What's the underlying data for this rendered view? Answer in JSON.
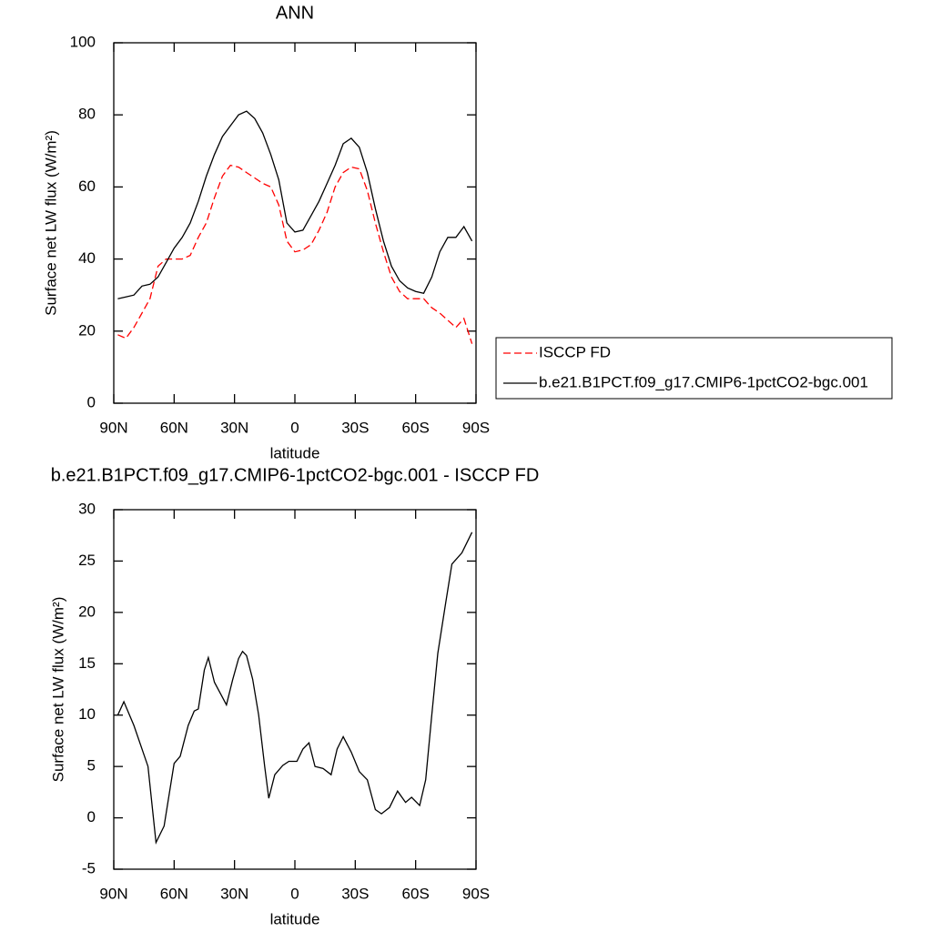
{
  "chart_data": [
    {
      "type": "line",
      "title": "ANN",
      "xlabel": "latitude",
      "ylabel": "Surface net LW flux (W/m²)",
      "x": [
        88,
        84,
        80,
        76,
        72,
        68,
        64,
        60,
        56,
        52,
        48,
        44,
        40,
        36,
        32,
        28,
        24,
        20,
        16,
        12,
        8,
        4,
        0,
        -4,
        -8,
        -12,
        -16,
        -20,
        -24,
        -28,
        -32,
        -36,
        -40,
        -44,
        -48,
        -52,
        -56,
        -60,
        -64,
        -68,
        -72,
        -76,
        -80,
        -84,
        -88
      ],
      "series": [
        {
          "name": "ISCCP FD",
          "color": "#ff0000",
          "line_style": "dashed",
          "values": [
            19,
            18,
            21,
            25,
            29,
            38,
            40,
            40,
            40,
            41,
            46,
            50,
            57,
            63,
            66,
            65.5,
            64,
            62.5,
            61,
            60,
            55,
            45,
            42,
            42.5,
            44,
            48,
            53,
            60,
            64,
            65.5,
            65,
            59,
            50,
            42,
            35,
            31,
            29,
            29,
            29,
            26.5,
            25,
            23,
            21,
            23.5,
            16.5
          ]
        },
        {
          "name": "b.e21.B1PCT.f09_g17.CMIP6-1pctCO2-bgc.001",
          "color": "#000000",
          "line_style": "solid",
          "values": [
            29,
            29.5,
            30,
            32.5,
            33,
            35,
            39,
            43,
            46,
            50,
            56,
            63,
            69,
            74,
            77,
            80,
            81,
            79,
            75,
            69,
            62,
            50,
            47.5,
            48,
            52,
            56,
            61,
            66,
            72,
            73.5,
            71,
            64,
            54,
            45,
            38,
            34,
            32,
            31,
            30.5,
            35,
            42,
            46,
            46,
            49,
            45
          ]
        }
      ],
      "xlim": [
        90,
        -90
      ],
      "xticks": [
        {
          "value": 90,
          "label": "90N"
        },
        {
          "value": 60,
          "label": "60N"
        },
        {
          "value": 30,
          "label": "30N"
        },
        0,
        {
          "value": -30,
          "label": "30S"
        },
        {
          "value": -60,
          "label": "60S"
        },
        {
          "value": -90,
          "label": "90S"
        }
      ],
      "ylim": [
        0,
        100
      ],
      "yticks": [
        0,
        20,
        40,
        60,
        80,
        100
      ],
      "legend": "right"
    },
    {
      "type": "line",
      "title": "b.e21.B1PCT.f09_g17.CMIP6-1pctCO2-bgc.001 - ISCCP FD",
      "xlabel": "latitude",
      "ylabel": "Surface net LW flux (W/m²)",
      "x": [
        88,
        85,
        80,
        73,
        69,
        65,
        60,
        57,
        53,
        50,
        48,
        45,
        43,
        40,
        34,
        31,
        28,
        26,
        24,
        21,
        18,
        15,
        13,
        10,
        6,
        3,
        -1,
        -4,
        -7,
        -10,
        -14,
        -18,
        -21,
        -24,
        -28,
        -32,
        -36,
        -40,
        -43,
        -47,
        -51,
        -55,
        -58,
        -62,
        -65,
        -68,
        -71,
        -75,
        -78,
        -83,
        -88
      ],
      "values": [
        10,
        11.3,
        9,
        5,
        -2.4,
        -0.8,
        5.3,
        6,
        9,
        10.4,
        10.6,
        14.4,
        15.6,
        13.2,
        11,
        13.4,
        15.5,
        16.2,
        15.8,
        13.5,
        10,
        5,
        1.9,
        4.2,
        5.1,
        5.5,
        5.5,
        6.7,
        7.3,
        5,
        4.8,
        4.2,
        6.7,
        7.9,
        6.4,
        4.5,
        3.7,
        0.8,
        0.4,
        1,
        2.6,
        1.5,
        2,
        1.2,
        3.7,
        10,
        16,
        21,
        24.7,
        25.8,
        27.8
      ],
      "color": "#000000",
      "xlim": [
        90,
        -90
      ],
      "xticks": [
        {
          "value": 90,
          "label": "90N"
        },
        {
          "value": 60,
          "label": "60N"
        },
        {
          "value": 30,
          "label": "30N"
        },
        0,
        {
          "value": -30,
          "label": "30S"
        },
        {
          "value": -60,
          "label": "60S"
        },
        {
          "value": -90,
          "label": "90S"
        }
      ],
      "ylim": [
        -5,
        30
      ],
      "yticks": [
        -5,
        0,
        5,
        10,
        15,
        20,
        25,
        30
      ]
    }
  ]
}
